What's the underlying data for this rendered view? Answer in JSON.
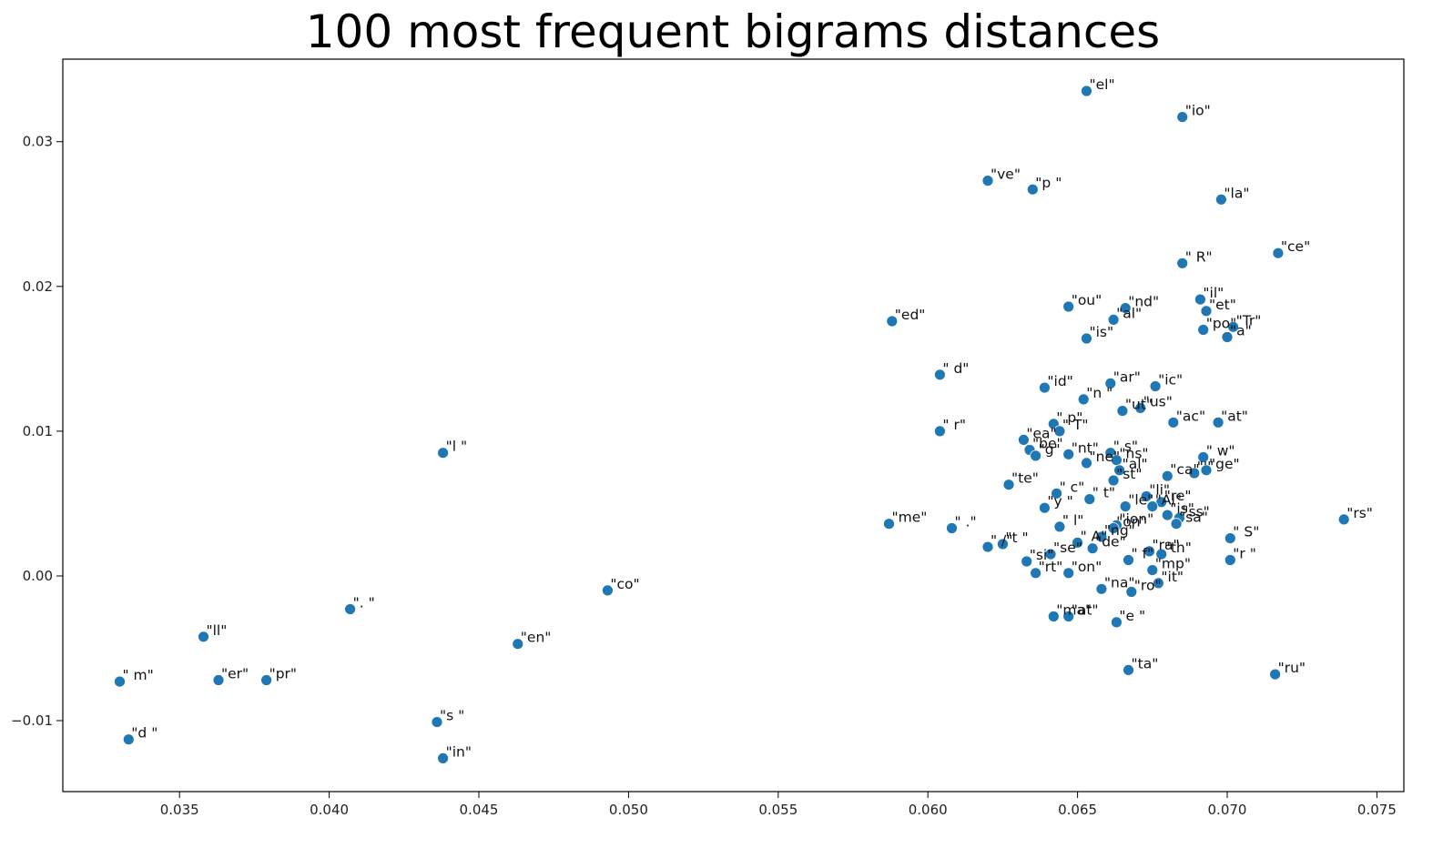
{
  "chart_data": {
    "type": "scatter",
    "title": "100 most frequent bigrams distances",
    "xlabel": "",
    "ylabel": "",
    "xlim": [
      0.0311,
      0.0759
    ],
    "ylim": [
      -0.0149,
      0.0357
    ],
    "grid": false,
    "legend": "none",
    "xticks": [
      {
        "value": 0.035,
        "label": "0.035"
      },
      {
        "value": 0.04,
        "label": "0.040"
      },
      {
        "value": 0.045,
        "label": "0.045"
      },
      {
        "value": 0.05,
        "label": "0.050"
      },
      {
        "value": 0.055,
        "label": "0.055"
      },
      {
        "value": 0.06,
        "label": "0.060"
      },
      {
        "value": 0.065,
        "label": "0.065"
      },
      {
        "value": 0.07,
        "label": "0.070"
      },
      {
        "value": 0.075,
        "label": "0.075"
      }
    ],
    "yticks": [
      {
        "value": -0.01,
        "label": "−0.01"
      },
      {
        "value": 0.0,
        "label": "0.00"
      },
      {
        "value": 0.01,
        "label": "0.01"
      },
      {
        "value": 0.02,
        "label": "0.02"
      },
      {
        "value": 0.03,
        "label": "0.03"
      }
    ],
    "point_color": "#1f77b4",
    "points": [
      {
        "label": "\"el\"",
        "x": 0.0653,
        "y": 0.0335
      },
      {
        "label": "\"io\"",
        "x": 0.0685,
        "y": 0.0317
      },
      {
        "label": "\"ve\"",
        "x": 0.062,
        "y": 0.0273
      },
      {
        "label": "\"p \"",
        "x": 0.0635,
        "y": 0.0267
      },
      {
        "label": "\"la\"",
        "x": 0.0698,
        "y": 0.026
      },
      {
        "label": "\"ce\"",
        "x": 0.0717,
        "y": 0.0223
      },
      {
        "label": "\" R\"",
        "x": 0.0685,
        "y": 0.0216
      },
      {
        "label": "\"il\"",
        "x": 0.0691,
        "y": 0.0191
      },
      {
        "label": "\"ou\"",
        "x": 0.0647,
        "y": 0.0186
      },
      {
        "label": "\"nd\"",
        "x": 0.0666,
        "y": 0.0185
      },
      {
        "label": "\"et\"",
        "x": 0.0693,
        "y": 0.0183
      },
      {
        "label": "\"ed\"",
        "x": 0.0588,
        "y": 0.0176
      },
      {
        "label": "\"al\"",
        "x": 0.0662,
        "y": 0.0177
      },
      {
        "label": "\"po\"",
        "x": 0.0692,
        "y": 0.017
      },
      {
        "label": "\"Tr\"",
        "x": 0.0702,
        "y": 0.0172
      },
      {
        "label": "\"a\"",
        "x": 0.07,
        "y": 0.0165
      },
      {
        "label": "\"is\"",
        "x": 0.0653,
        "y": 0.0164
      },
      {
        "label": "\" d\"",
        "x": 0.0604,
        "y": 0.0139
      },
      {
        "label": "\"id\"",
        "x": 0.0639,
        "y": 0.013
      },
      {
        "label": "\"ar\"",
        "x": 0.0661,
        "y": 0.0133
      },
      {
        "label": "\"ic\"",
        "x": 0.0676,
        "y": 0.0131
      },
      {
        "label": "\"n \"",
        "x": 0.0652,
        "y": 0.0122
      },
      {
        "label": "\"ut\"",
        "x": 0.0665,
        "y": 0.0114
      },
      {
        "label": "\"us\"",
        "x": 0.0671,
        "y": 0.0116
      },
      {
        "label": "\" p\"",
        "x": 0.0642,
        "y": 0.0105
      },
      {
        "label": "\"ac\"",
        "x": 0.0682,
        "y": 0.0106
      },
      {
        "label": "\"at\"",
        "x": 0.0697,
        "y": 0.0106
      },
      {
        "label": "\" T\"",
        "x": 0.0644,
        "y": 0.01
      },
      {
        "label": "\" r\"",
        "x": 0.0604,
        "y": 0.01
      },
      {
        "label": "\"ea\"",
        "x": 0.0632,
        "y": 0.0094
      },
      {
        "label": "\"l \"",
        "x": 0.0438,
        "y": 0.0085
      },
      {
        "label": "\"be\"",
        "x": 0.0634,
        "y": 0.0087
      },
      {
        "label": "\"g\"",
        "x": 0.0636,
        "y": 0.0083
      },
      {
        "label": "\"nt\"",
        "x": 0.0647,
        "y": 0.0084
      },
      {
        "label": "\" s\"",
        "x": 0.0661,
        "y": 0.0085
      },
      {
        "label": "\"ns\"",
        "x": 0.0663,
        "y": 0.008
      },
      {
        "label": "\" w\"",
        "x": 0.0692,
        "y": 0.0082
      },
      {
        "label": "\"ne\"",
        "x": 0.0653,
        "y": 0.0078
      },
      {
        "label": "\"al\"",
        "x": 0.0664,
        "y": 0.0073
      },
      {
        "label": "\"ca\"",
        "x": 0.068,
        "y": 0.0069
      },
      {
        "label": "\"'\"",
        "x": 0.0689,
        "y": 0.0071
      },
      {
        "label": "\"ge\"",
        "x": 0.0693,
        "y": 0.0073
      },
      {
        "label": "\"st\"",
        "x": 0.0662,
        "y": 0.0066
      },
      {
        "label": "\"te\"",
        "x": 0.0627,
        "y": 0.0063
      },
      {
        "label": "\" c\"",
        "x": 0.0643,
        "y": 0.0057
      },
      {
        "label": "\" t\"",
        "x": 0.0654,
        "y": 0.0053
      },
      {
        "label": "\"li\"",
        "x": 0.0673,
        "y": 0.0055
      },
      {
        "label": "\"le\"",
        "x": 0.0666,
        "y": 0.0048
      },
      {
        "label": "\"y \"",
        "x": 0.0639,
        "y": 0.0047
      },
      {
        "label": "\"re\"",
        "x": 0.0678,
        "y": 0.0051
      },
      {
        "label": "\"Al\"",
        "x": 0.0675,
        "y": 0.0048
      },
      {
        "label": "\"is\"",
        "x": 0.068,
        "y": 0.0042
      },
      {
        "label": "\"ss\"",
        "x": 0.0684,
        "y": 0.004
      },
      {
        "label": "\"sa\"",
        "x": 0.0683,
        "y": 0.0036
      },
      {
        "label": "\"rs\"",
        "x": 0.0739,
        "y": 0.0039
      },
      {
        "label": "\"me\"",
        "x": 0.0587,
        "y": 0.0036
      },
      {
        "label": "\" .\"",
        "x": 0.0608,
        "y": 0.0033
      },
      {
        "label": "\" l\"",
        "x": 0.0644,
        "y": 0.0034
      },
      {
        "label": "\"ion\"",
        "x": 0.0663,
        "y": 0.0035
      },
      {
        "label": "\"on\"",
        "x": 0.0662,
        "y": 0.0033
      },
      {
        "label": "\" S\"",
        "x": 0.0701,
        "y": 0.0026
      },
      {
        "label": "\"ng\"",
        "x": 0.0658,
        "y": 0.0027
      },
      {
        "label": "\" A\"",
        "x": 0.065,
        "y": 0.0023
      },
      {
        "label": "\"t \"",
        "x": 0.0625,
        "y": 0.0022
      },
      {
        "label": "\" /\"",
        "x": 0.062,
        "y": 0.002
      },
      {
        "label": "\"de\"",
        "x": 0.0655,
        "y": 0.0019
      },
      {
        "label": "\"se\"",
        "x": 0.0641,
        "y": 0.0015
      },
      {
        "label": "\"ra\"",
        "x": 0.0674,
        "y": 0.0017
      },
      {
        "label": "\"th\"",
        "x": 0.0678,
        "y": 0.0015
      },
      {
        "label": "\"si\"",
        "x": 0.0633,
        "y": 0.001
      },
      {
        "label": "\" f\"",
        "x": 0.0667,
        "y": 0.0011
      },
      {
        "label": "\"r \"",
        "x": 0.0701,
        "y": 0.0011
      },
      {
        "label": "\"mp\"",
        "x": 0.0675,
        "y": 0.0004
      },
      {
        "label": "\"rt\"",
        "x": 0.0636,
        "y": 0.0002
      },
      {
        "label": "\"on\"",
        "x": 0.0647,
        "y": 0.0002
      },
      {
        "label": "\"it\"",
        "x": 0.0677,
        "y": -0.0005
      },
      {
        "label": "\"ro\"",
        "x": 0.0668,
        "y": -0.0011
      },
      {
        "label": "\"co\"",
        "x": 0.0493,
        "y": -0.001
      },
      {
        "label": "\"na\"",
        "x": 0.0658,
        "y": -0.0009
      },
      {
        "label": "\". \"",
        "x": 0.0407,
        "y": -0.0023
      },
      {
        "label": "\"ma\"",
        "x": 0.0642,
        "y": -0.0028
      },
      {
        "label": "\"at\"",
        "x": 0.0647,
        "y": -0.0028
      },
      {
        "label": "\"e \"",
        "x": 0.0663,
        "y": -0.0032
      },
      {
        "label": "\"ll\"",
        "x": 0.0358,
        "y": -0.0042
      },
      {
        "label": "\"en\"",
        "x": 0.0463,
        "y": -0.0047
      },
      {
        "label": "\"ta\"",
        "x": 0.0667,
        "y": -0.0065
      },
      {
        "label": "\"ru\"",
        "x": 0.0716,
        "y": -0.0068
      },
      {
        "label": "\" m\"",
        "x": 0.033,
        "y": -0.0073
      },
      {
        "label": "\"er\"",
        "x": 0.0363,
        "y": -0.0072
      },
      {
        "label": "\"pr\"",
        "x": 0.0379,
        "y": -0.0072
      },
      {
        "label": "\"s \"",
        "x": 0.0436,
        "y": -0.0101
      },
      {
        "label": "\"d \"",
        "x": 0.0333,
        "y": -0.0113
      },
      {
        "label": "\"in\"",
        "x": 0.0438,
        "y": -0.0126
      }
    ]
  }
}
